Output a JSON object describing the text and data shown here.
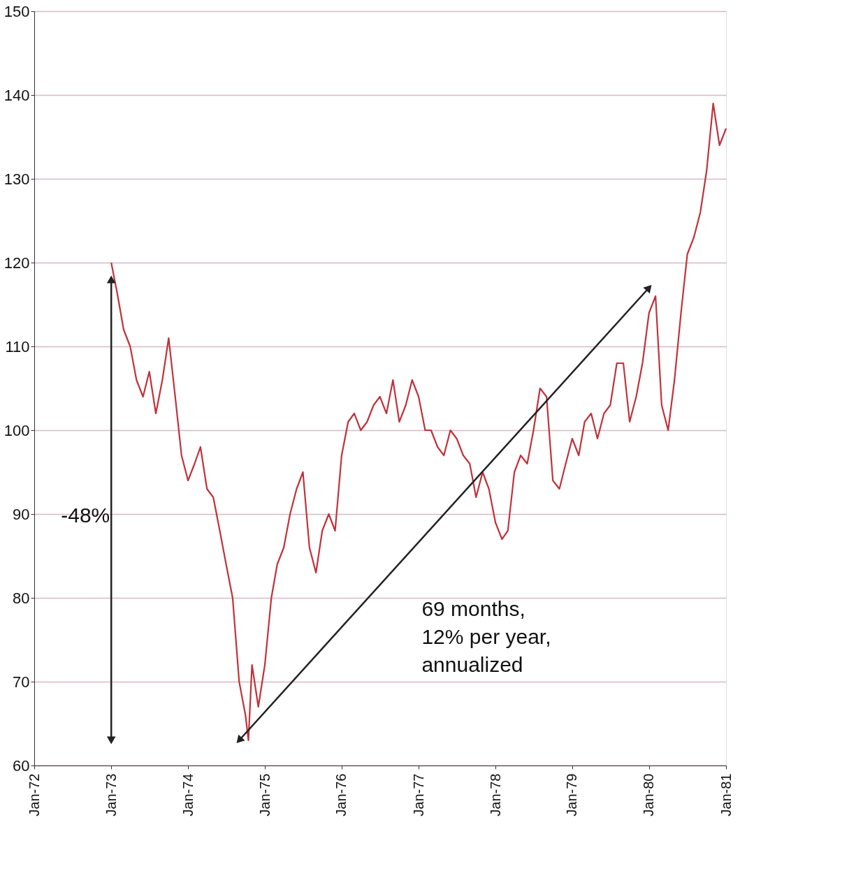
{
  "chart_data": {
    "type": "line",
    "series": [
      {
        "color": "#c0323a",
        "x": [
          "1973-01",
          "1973-02",
          "1973-03",
          "1973-04",
          "1973-05",
          "1973-06",
          "1973-07",
          "1973-08",
          "1973-09",
          "1973-10",
          "1973-11",
          "1973-12",
          "1974-01",
          "1974-02",
          "1974-03",
          "1974-04",
          "1974-05",
          "1974-06",
          "1974-07",
          "1974-08",
          "1974-09",
          "1974-10",
          "1974-10-15",
          "1974-11",
          "1974-12",
          "1975-01",
          "1975-02",
          "1975-03",
          "1975-04",
          "1975-05",
          "1975-06",
          "1975-07",
          "1975-08",
          "1975-09",
          "1975-10",
          "1975-11",
          "1975-12",
          "1976-01",
          "1976-02",
          "1976-03",
          "1976-04",
          "1976-05",
          "1976-06",
          "1976-07",
          "1976-08",
          "1976-09",
          "1976-10",
          "1976-11",
          "1976-12",
          "1977-01",
          "1977-02",
          "1977-03",
          "1977-04",
          "1977-05",
          "1977-06",
          "1977-07",
          "1977-08",
          "1977-09",
          "1977-10",
          "1977-11",
          "1977-12",
          "1978-01",
          "1978-02",
          "1978-03",
          "1978-04",
          "1978-05",
          "1978-06",
          "1978-07",
          "1978-08",
          "1978-09",
          "1978-10",
          "1978-11",
          "1978-12",
          "1979-01",
          "1979-02",
          "1979-03",
          "1979-04",
          "1979-05",
          "1979-06",
          "1979-07",
          "1979-08",
          "1979-09",
          "1979-10",
          "1979-11",
          "1979-12",
          "1980-01",
          "1980-02",
          "1980-03",
          "1980-04",
          "1980-05",
          "1980-06",
          "1980-07",
          "1980-08",
          "1980-09",
          "1980-10",
          "1980-11",
          "1980-12",
          "1981-01"
        ],
        "values": [
          120,
          116,
          112,
          110,
          106,
          104,
          107,
          102,
          106,
          111,
          104,
          97,
          94,
          96,
          98,
          93,
          92,
          88,
          84,
          80,
          70,
          66,
          63,
          72,
          67,
          72,
          80,
          84,
          86,
          90,
          93,
          95,
          86,
          83,
          88,
          90,
          88,
          97,
          101,
          102,
          100,
          101,
          103,
          104,
          102,
          106,
          101,
          103,
          106,
          104,
          100,
          100,
          98,
          97,
          100,
          99,
          97,
          96,
          92,
          95,
          93,
          89,
          87,
          88,
          95,
          97,
          96,
          100,
          105,
          104,
          94,
          93,
          96,
          99,
          97,
          101,
          102,
          99,
          102,
          103,
          108,
          108,
          101,
          104,
          108,
          114,
          116,
          103,
          100,
          106,
          114,
          121,
          123,
          126,
          131,
          139,
          134,
          136
        ]
      },
      {
        "color": "#222222",
        "x": [
          "1973-01",
          "1973-01"
        ],
        "values": [
          118,
          63
        ],
        "marker": "triangle"
      },
      {
        "color": "#222222",
        "x": [
          "1974-09",
          "1980-01"
        ],
        "values": [
          63,
          117
        ],
        "marker": "triangle"
      }
    ],
    "xlim": [
      "1972-01",
      "1981-01"
    ],
    "xticks": [
      {
        "value": "1972-01",
        "label": "Jan-72"
      },
      {
        "value": "1973-01",
        "label": "Jan-73"
      },
      {
        "value": "1974-01",
        "label": "Jan-74"
      },
      {
        "value": "1975-01",
        "label": "Jan-75"
      },
      {
        "value": "1976-01",
        "label": "Jan-76"
      },
      {
        "value": "1977-01",
        "label": "Jan-77"
      },
      {
        "value": "1978-01",
        "label": "Jan-78"
      },
      {
        "value": "1979-01",
        "label": "Jan-79"
      },
      {
        "value": "1980-01",
        "label": "Jan-80"
      },
      {
        "value": "1981-01",
        "label": "Jan-81"
      }
    ],
    "ylim": [
      60,
      150
    ],
    "yticks": [
      60,
      70,
      80,
      90,
      100,
      110,
      120,
      130,
      140,
      150
    ],
    "grid": "y",
    "annotations": [
      {
        "text": "-48%",
        "x": "1973-01",
        "y": 91
      },
      "69 months,\n12% per year,\nannualized"
    ]
  }
}
